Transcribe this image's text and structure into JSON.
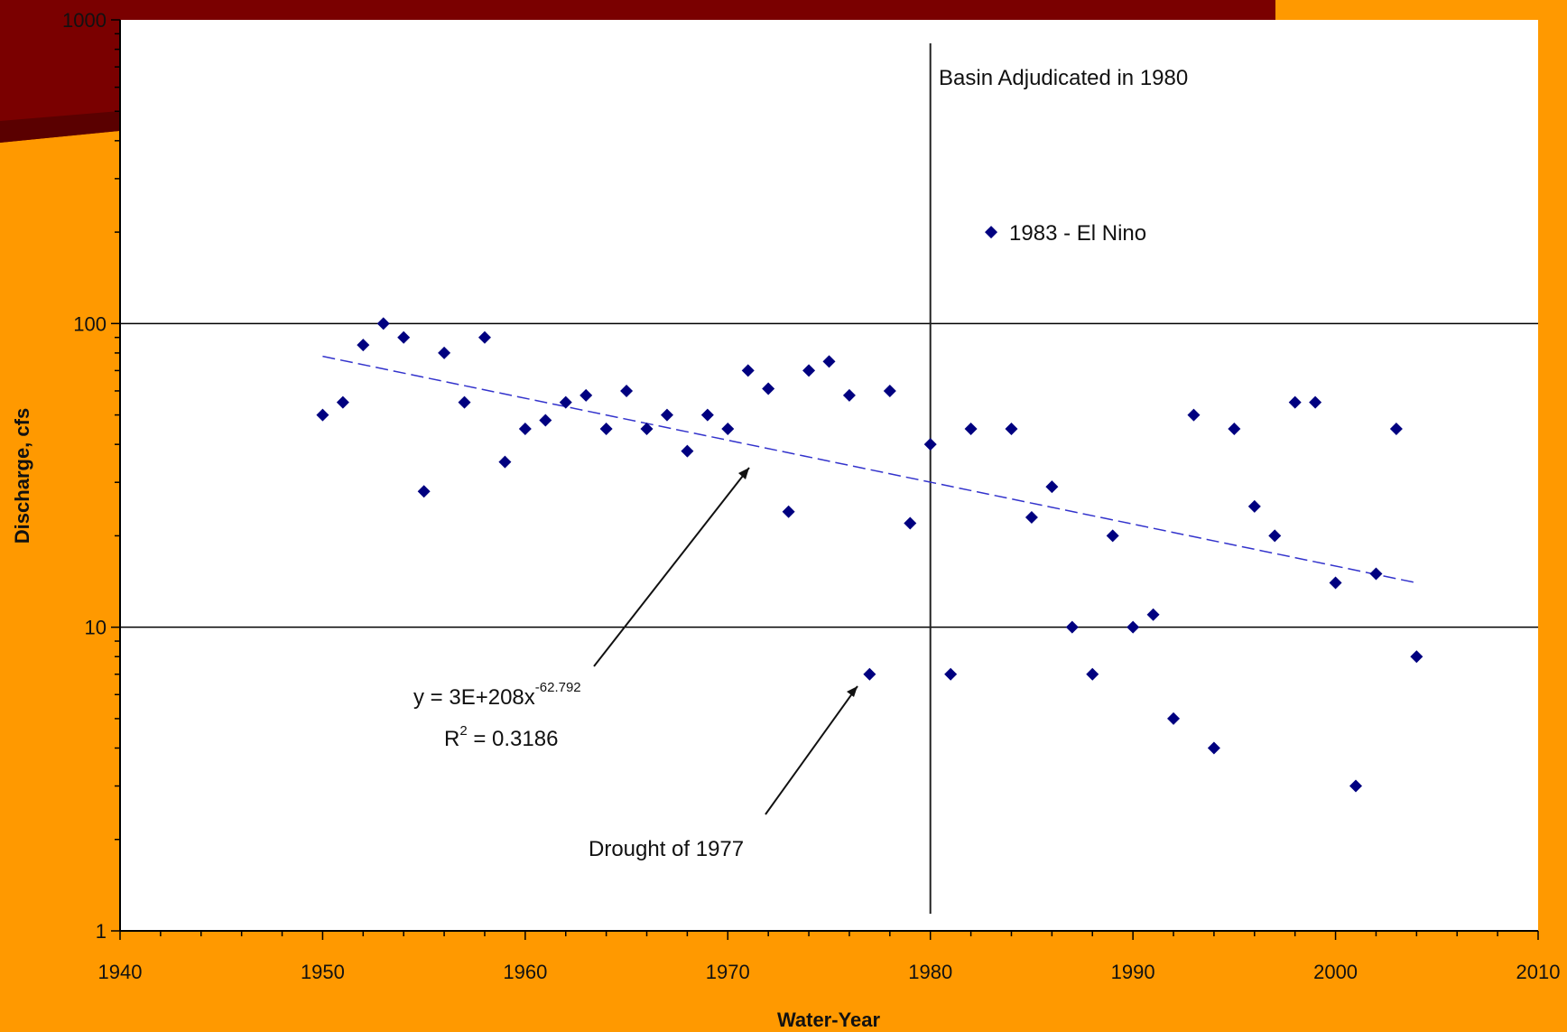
{
  "chart_data": {
    "type": "scatter",
    "xlabel": "Water-Year",
    "ylabel": "Discharge, cfs",
    "xlim": [
      1940,
      2010
    ],
    "ylim": [
      1,
      1000
    ],
    "yscale": "log",
    "x_ticks": [
      "1940",
      "1950",
      "1960",
      "1970",
      "1980",
      "1990",
      "2000",
      "2010"
    ],
    "y_ticks": [
      "1",
      "10",
      "100",
      "1000"
    ],
    "grid": "horizontal major lines at 10 and 100",
    "marker_color": "#000080",
    "trendline": {
      "type": "power",
      "color": "#3333CC",
      "style": "dashed",
      "equation_prefix": "y = 3E+208x",
      "equation_exponent": "-62.792",
      "r2_prefix": "R",
      "r2_superscript": "2",
      "r2_value": " = 0.3186",
      "from": [
        1950,
        78
      ],
      "to": [
        2004,
        14
      ]
    },
    "vertical_line": {
      "x": 1980,
      "label": "Basin Adjudicated in 1980"
    },
    "annotations": {
      "el_nino": {
        "x": 1983,
        "y": 200,
        "label": "1983 - El Nino"
      },
      "drought": {
        "label": "Drought of 1977",
        "target": [
          1977,
          7
        ]
      }
    },
    "series": [
      {
        "x": [
          1950,
          1951,
          1952,
          1953,
          1954,
          1955,
          1956,
          1957,
          1958,
          1959,
          1960,
          1961,
          1962,
          1963,
          1964,
          1965,
          1966,
          1967,
          1968,
          1969,
          1970,
          1971,
          1972,
          1973,
          1974,
          1975,
          1976,
          1977,
          1978,
          1979,
          1980,
          1981,
          1982,
          1984,
          1985,
          1986,
          1987,
          1988,
          1989,
          1990,
          1991,
          1992,
          1993,
          1994,
          1995,
          1996,
          1997,
          1998,
          1999,
          2000,
          2001,
          2002,
          2003,
          2004
        ],
        "y": [
          50,
          55,
          85,
          100,
          90,
          28,
          80,
          55,
          90,
          35,
          45,
          48,
          55,
          58,
          45,
          60,
          45,
          50,
          38,
          50,
          45,
          70,
          61,
          24,
          70,
          75,
          58,
          7,
          60,
          22,
          40,
          7,
          45,
          45,
          23,
          29,
          10,
          7,
          20,
          10,
          11,
          5,
          50,
          4,
          45,
          25,
          20,
          55,
          55,
          14,
          3,
          15,
          45,
          8
        ]
      }
    ]
  }
}
